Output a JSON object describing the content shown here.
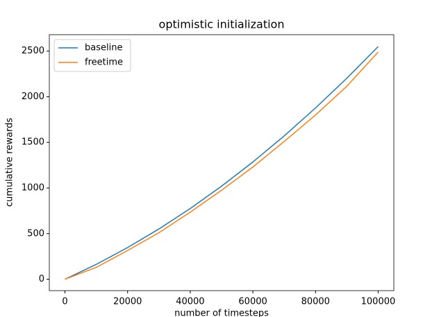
{
  "chart_data": {
    "type": "line",
    "title": "optimistic initialization",
    "x_label": "number of timesteps",
    "y_label": "cumulative rewards",
    "x": [
      0,
      10000,
      20000,
      30000,
      40000,
      50000,
      60000,
      70000,
      80000,
      90000,
      100000
    ],
    "series": [
      {
        "name": "baseline",
        "color": "#1f77b4",
        "values": [
          0,
          163,
          347,
          551,
          775,
          1020,
          1285,
          1571,
          1877,
          2203,
          2550
        ]
      },
      {
        "name": "freetime",
        "color": "#ff7f0e",
        "values": [
          0,
          130,
          315,
          510,
          735,
          975,
          1230,
          1510,
          1800,
          2115,
          2490
        ]
      }
    ],
    "xlim": [
      -5000,
      105000
    ],
    "ylim": [
      -125,
      2680
    ],
    "xticks": [
      0,
      20000,
      40000,
      60000,
      80000,
      100000
    ],
    "yticks": [
      0,
      500,
      1000,
      1500,
      2000,
      2500
    ],
    "grid": false,
    "legend": "upper left"
  }
}
